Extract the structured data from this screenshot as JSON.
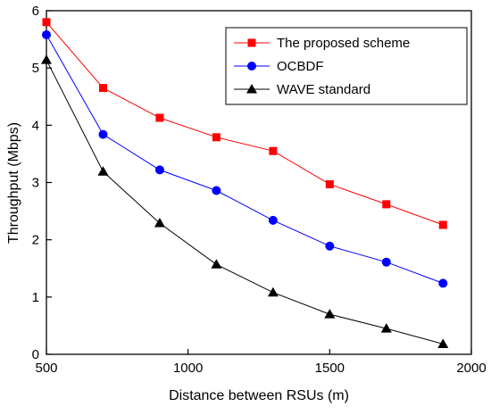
{
  "chart_data": {
    "type": "line",
    "title": "",
    "xlabel": "Distance between RSUs (m)",
    "ylabel": "Throughput (Mbps)",
    "xlim": [
      500,
      2000
    ],
    "ylim": [
      0,
      6
    ],
    "x_ticks": [
      500,
      1000,
      1500,
      2000
    ],
    "y_ticks": [
      0,
      1,
      2,
      3,
      4,
      5,
      6
    ],
    "grid": false,
    "legend_position": "top-right",
    "x": [
      500,
      700,
      900,
      1100,
      1300,
      1500,
      1700,
      1900
    ],
    "series": [
      {
        "name": "The proposed scheme",
        "color": "#ff0000",
        "marker": "square",
        "values": [
          5.8,
          4.65,
          4.13,
          3.79,
          3.55,
          2.97,
          2.62,
          2.26
        ]
      },
      {
        "name": "OCBDF",
        "color": "#0000ff",
        "marker": "circle",
        "values": [
          5.58,
          3.84,
          3.22,
          2.86,
          2.34,
          1.89,
          1.61,
          1.24
        ]
      },
      {
        "name": "WAVE standard",
        "color": "#000000",
        "marker": "triangle",
        "values": [
          5.14,
          3.19,
          2.29,
          1.57,
          1.08,
          0.7,
          0.45,
          0.18
        ]
      }
    ]
  }
}
